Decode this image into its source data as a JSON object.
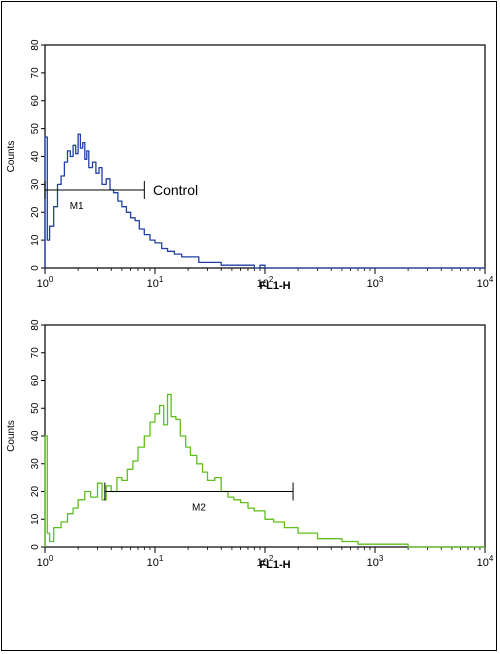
{
  "chart_data": [
    {
      "type": "line",
      "title": "",
      "xlabel": "FL1-H",
      "ylabel": "Counts",
      "x_scale": "log",
      "xlim": [
        1,
        10000
      ],
      "ylim": [
        0,
        80
      ],
      "y_ticks": [
        0,
        10,
        20,
        30,
        40,
        50,
        60,
        70,
        80
      ],
      "x_ticks": [
        {
          "base": "10",
          "exp": "0"
        },
        {
          "base": "10",
          "exp": "1"
        },
        {
          "base": "10",
          "exp": "2"
        },
        {
          "base": "10",
          "exp": "3"
        },
        {
          "base": "10",
          "exp": "4"
        }
      ],
      "grid": false,
      "color": "#1f3fa6",
      "series": [
        {
          "x": [
            1.0,
            1.05,
            1.1,
            1.2,
            1.3,
            1.4,
            1.5,
            1.6,
            1.7,
            1.8,
            1.9,
            2.0,
            2.1,
            2.2,
            2.3,
            2.4,
            2.5,
            2.7,
            2.9,
            3.1,
            3.3,
            3.6,
            3.9,
            4.2,
            4.6,
            5.0,
            5.5,
            6.0,
            6.6,
            7.2,
            8.0,
            9.0,
            10.0,
            11.5,
            13.0,
            15.0,
            17.5,
            20.0,
            25.0,
            30.0,
            40.0,
            50.0,
            65.0,
            80.0,
            90.0,
            100.0,
            150.0,
            300.0,
            1000.0,
            10000.0
          ],
          "y": [
            47,
            10,
            15,
            22,
            30,
            33,
            38,
            42,
            40,
            44,
            41,
            48,
            43,
            45,
            39,
            42,
            36,
            38,
            34,
            36,
            30,
            32,
            28,
            27,
            24,
            22,
            20,
            18,
            17,
            14,
            12,
            10,
            9,
            7,
            6,
            5,
            4,
            4,
            2,
            2,
            1,
            1,
            1,
            0,
            1,
            0,
            0,
            0,
            0,
            0
          ]
        }
      ],
      "annotations": [
        {
          "label": "M1",
          "x1": 1.0,
          "x2": 8.0,
          "y": 28
        },
        {
          "label": "Control",
          "x": 9.0,
          "y": 28
        }
      ]
    },
    {
      "type": "line",
      "title": "",
      "xlabel": "FL1-H",
      "ylabel": "Counts",
      "x_scale": "log",
      "xlim": [
        1,
        10000
      ],
      "ylim": [
        0,
        80
      ],
      "y_ticks": [
        0,
        10,
        20,
        30,
        40,
        50,
        60,
        70,
        80
      ],
      "x_ticks": [
        {
          "base": "10",
          "exp": "0"
        },
        {
          "base": "10",
          "exp": "1"
        },
        {
          "base": "10",
          "exp": "2"
        },
        {
          "base": "10",
          "exp": "3"
        },
        {
          "base": "10",
          "exp": "4"
        }
      ],
      "grid": false,
      "color": "#5fbf1f",
      "series": [
        {
          "x": [
            1.0,
            1.05,
            1.1,
            1.2,
            1.4,
            1.6,
            1.8,
            2.0,
            2.3,
            2.6,
            3.0,
            3.3,
            3.6,
            4.0,
            4.5,
            5.0,
            5.6,
            6.3,
            7.0,
            8.0,
            9.0,
            10.0,
            11.0,
            12.0,
            13.0,
            14.0,
            15.5,
            17.0,
            19.0,
            21.0,
            24.0,
            27.0,
            30.0,
            35.0,
            40.0,
            46.0,
            52.0,
            60.0,
            70.0,
            80.0,
            100.0,
            120.0,
            150.0,
            200.0,
            300.0,
            500.0,
            700.0,
            1000.0,
            2000.0,
            10000.0
          ],
          "y": [
            40,
            5,
            2,
            7,
            9,
            12,
            14,
            17,
            20,
            18,
            23,
            17,
            22,
            20,
            25,
            24,
            28,
            31,
            36,
            40,
            45,
            48,
            51,
            44,
            55,
            47,
            46,
            40,
            36,
            33,
            30,
            27,
            24,
            25,
            20,
            18,
            17,
            16,
            14,
            13,
            10,
            9,
            7,
            5,
            3,
            2,
            1,
            1,
            0,
            0
          ]
        }
      ],
      "annotations": [
        {
          "label": "M2",
          "x1": 3.5,
          "x2": 180.0,
          "y": 20
        }
      ]
    }
  ]
}
